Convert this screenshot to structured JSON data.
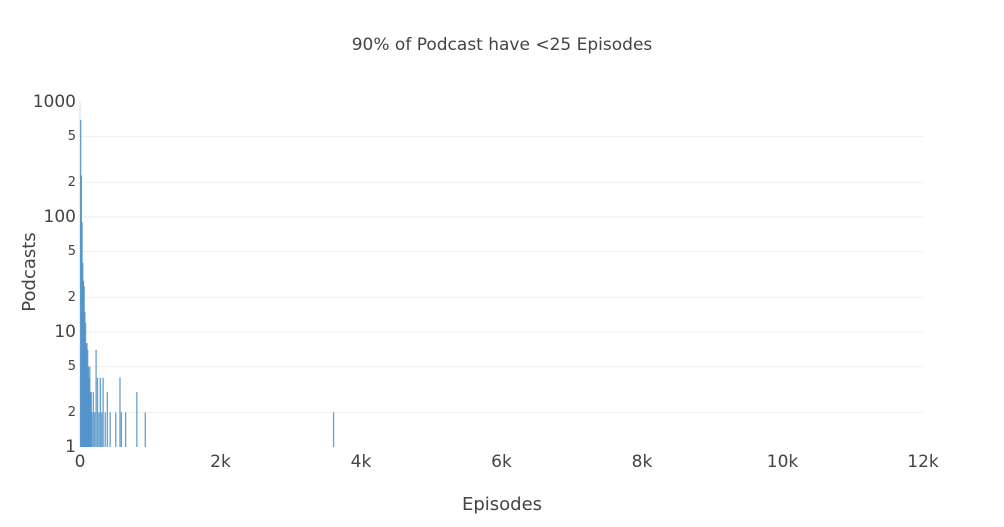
{
  "chart_data": {
    "type": "bar",
    "title": "90% of Podcast have <25 Episodes",
    "x_label": "Episodes",
    "y_label": "Podcasts",
    "x": [
      0,
      10,
      20,
      30,
      40,
      50,
      60,
      70,
      80,
      90,
      100,
      110,
      120,
      130,
      140,
      150,
      160,
      180,
      200,
      220,
      240,
      260,
      280,
      300,
      320,
      350,
      380,
      420,
      500,
      560,
      580,
      640,
      800,
      920,
      3600
    ],
    "values": [
      700,
      230,
      90,
      40,
      28,
      25,
      15,
      12,
      8,
      8,
      7,
      5,
      4,
      5,
      3,
      3,
      2,
      3,
      2,
      7,
      4,
      2,
      4,
      2,
      4,
      2,
      3,
      2,
      2,
      4,
      2,
      2,
      3,
      2,
      2
    ],
    "color": "#4a90c8",
    "log_y": true,
    "grid": true,
    "xlim": [
      0,
      12000
    ],
    "xticks": [
      0,
      {
        "value": 2000,
        "label": "2k"
      },
      {
        "value": 4000,
        "label": "4k"
      },
      {
        "value": 6000,
        "label": "6k"
      },
      {
        "value": 8000,
        "label": "8k"
      },
      {
        "value": 10000,
        "label": "10k"
      },
      {
        "value": 12000,
        "label": "12k"
      }
    ],
    "ylim": [
      1,
      1000
    ],
    "yticks": [
      1,
      2,
      5,
      10,
      {
        "value": 20,
        "label": "2"
      },
      {
        "value": 50,
        "label": "5"
      },
      100,
      {
        "value": 200,
        "label": "2"
      },
      {
        "value": 500,
        "label": "5"
      },
      1000
    ]
  }
}
